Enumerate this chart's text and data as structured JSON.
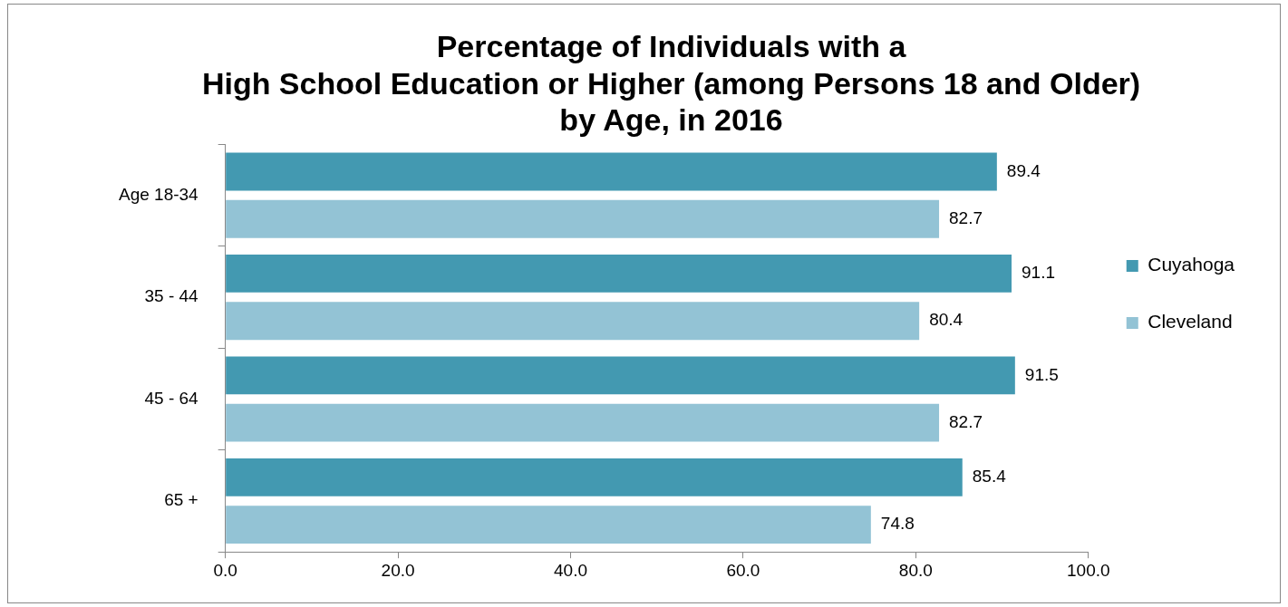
{
  "chart_data": {
    "type": "bar",
    "orientation": "horizontal",
    "title": "Percentage of Individuals with a\nHigh School Education or Higher (among Persons 18 and Older)\nby Age, in 2016",
    "categories": [
      "Age 18-34",
      "35 - 44",
      "45 - 64",
      "65 +"
    ],
    "series": [
      {
        "name": "Cuyahoga",
        "color": "#4399b1",
        "values": [
          89.4,
          91.1,
          91.5,
          85.4
        ]
      },
      {
        "name": "Cleveland",
        "color": "#93c3d5",
        "values": [
          82.7,
          80.4,
          82.7,
          74.8
        ]
      }
    ],
    "xlim": [
      0,
      100
    ],
    "xticks": [
      {
        "value": 0,
        "label": "0.0"
      },
      {
        "value": 20,
        "label": "20.0"
      },
      {
        "value": 40,
        "label": "40.0"
      },
      {
        "value": 60,
        "label": "60.0"
      },
      {
        "value": 80,
        "label": "80.0"
      },
      {
        "value": 100,
        "label": "100.0"
      }
    ],
    "grid": false,
    "legend": "right",
    "data_labels": true
  }
}
